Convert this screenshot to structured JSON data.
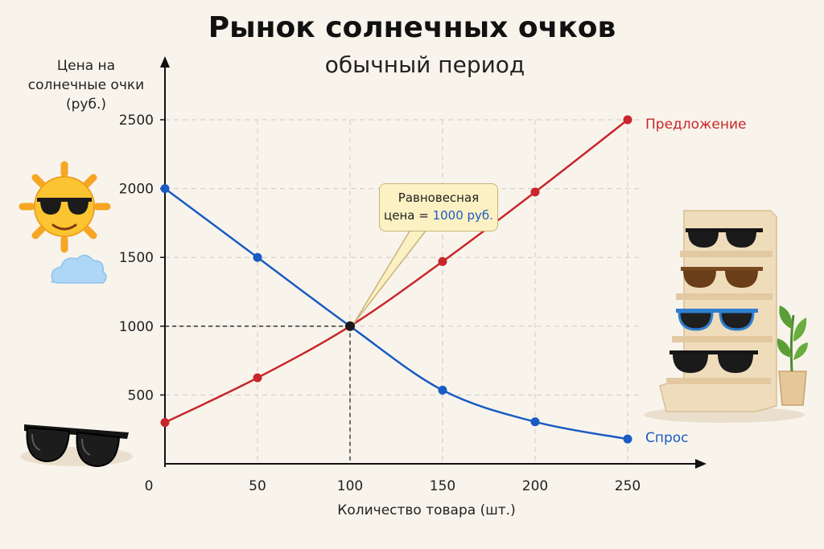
{
  "title": "Рынок солнечных очков",
  "subtitle": "обычный период",
  "annotation": {
    "line1": "Равновесная",
    "line2_prefix": "цена = ",
    "line2_value": "1000 руб."
  },
  "chart_data": {
    "type": "line",
    "xlabel": "Количество товара (шт.)",
    "ylabel": "Цена на солнечные очки (руб.)",
    "ylabel_lines": [
      "Цена на",
      "солнечные очки",
      "(руб.)"
    ],
    "x_ticks": [
      0,
      50,
      100,
      150,
      200,
      250
    ],
    "y_ticks": [
      500,
      1000,
      1500,
      2000,
      2500
    ],
    "xlim": [
      0,
      250
    ],
    "ylim": [
      0,
      2500
    ],
    "grid": true,
    "series": [
      {
        "name": "Предложение",
        "color": "#c8262a",
        "points": [
          [
            0,
            300
          ],
          [
            50,
            625
          ],
          [
            100,
            1000
          ],
          [
            150,
            1470
          ],
          [
            200,
            1975
          ],
          [
            250,
            2500
          ]
        ]
      },
      {
        "name": "Спрос",
        "color": "#1a5bc4",
        "points": [
          [
            0,
            2000
          ],
          [
            50,
            1500
          ],
          [
            100,
            1000
          ],
          [
            150,
            535
          ],
          [
            200,
            305
          ],
          [
            250,
            180
          ]
        ]
      }
    ],
    "equilibrium": {
      "x": 100,
      "y": 1000
    }
  }
}
